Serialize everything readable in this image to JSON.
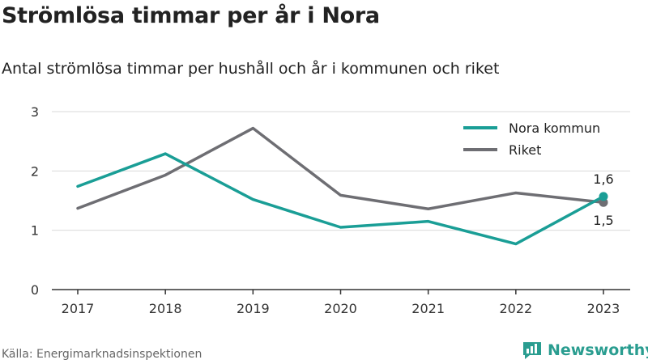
{
  "title": "Strömlösa timmar per år i Nora",
  "subtitle": "Antal strömlösa timmar per hushåll och år i kommunen och riket",
  "source": "Källa: Energimarknadsinspektionen",
  "brand": {
    "name": "Newsworthy",
    "icon": "newsworthy-logo-icon",
    "color": "#2a9d90"
  },
  "chart_data": {
    "type": "line",
    "x": [
      "2017",
      "2018",
      "2019",
      "2020",
      "2021",
      "2022",
      "2023"
    ],
    "ylim": [
      0,
      3
    ],
    "yticks": [
      "0",
      "1",
      "2",
      "3"
    ],
    "grid": true,
    "legend_position": "top-right",
    "series": [
      {
        "name": "Nora kommun",
        "color": "#1a9e96",
        "values": [
          1.74,
          2.29,
          1.52,
          1.05,
          1.15,
          0.77,
          1.57
        ],
        "end_label": "1,6"
      },
      {
        "name": "Riket",
        "color": "#6e6e73",
        "values": [
          1.37,
          1.93,
          2.72,
          1.59,
          1.36,
          1.63,
          1.47
        ],
        "end_label": "1,5"
      }
    ]
  }
}
